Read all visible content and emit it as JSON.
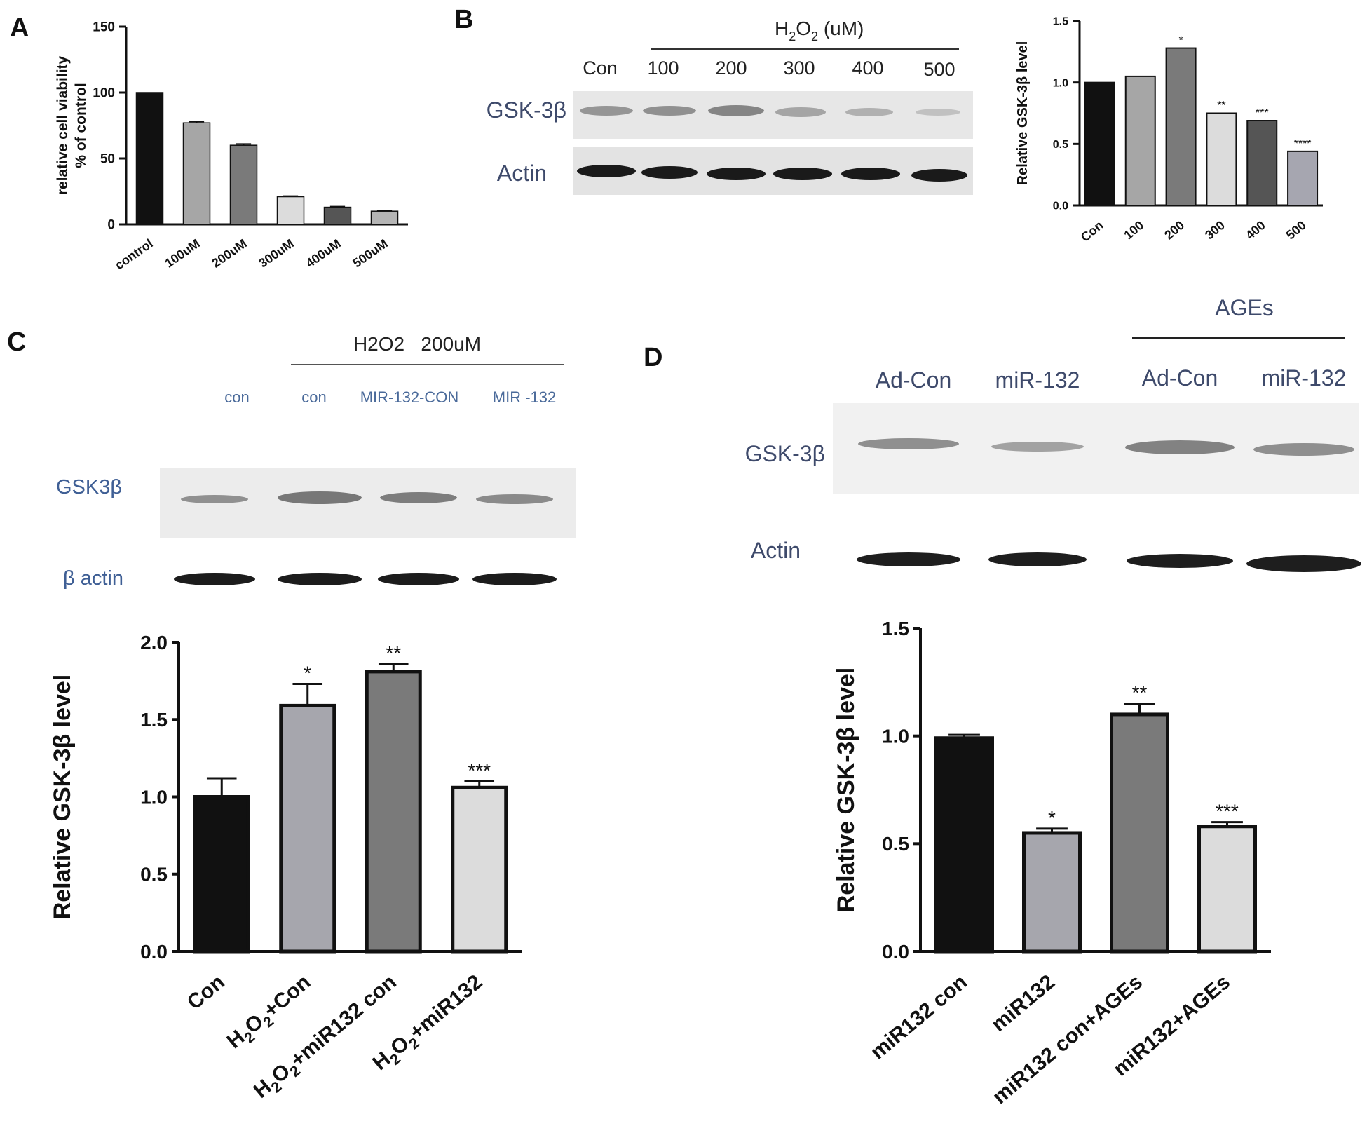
{
  "panels": {
    "A": {
      "letter": "A"
    },
    "B": {
      "letter": "B",
      "blot": {
        "header_prefix": "H",
        "header_sub": "2",
        "header_suffix": "O",
        "header_sub2": "2",
        "header_unit": " (uM)",
        "lanes": [
          "Con",
          "100",
          "200",
          "300",
          "400",
          "500"
        ],
        "rows": [
          "GSK-3β",
          "Actin"
        ]
      }
    },
    "C": {
      "letter": "C",
      "blot": {
        "header": "H2O2   200uM",
        "lanes": [
          "con",
          "con",
          "MIR-132-CON",
          "MIR -132"
        ],
        "rows": [
          "GSK3β",
          "β actin"
        ]
      }
    },
    "D": {
      "letter": "D",
      "blot": {
        "header": "AGEs",
        "lanes": [
          "Ad-Con",
          "miR-132",
          "Ad-Con",
          "miR-132"
        ],
        "rows": [
          "GSK-3β",
          "Actin"
        ]
      }
    }
  },
  "chart_data": [
    {
      "id": "A",
      "type": "bar",
      "categories": [
        "control",
        "100uM",
        "200uM",
        "300uM",
        "400uM",
        "500uM"
      ],
      "values": [
        100,
        77,
        60,
        21,
        13,
        10
      ],
      "errors": [
        0,
        1,
        1,
        0.5,
        0.5,
        0.5
      ],
      "ylabel_line1": "relative cell viability",
      "ylabel_line2": "% of control",
      "ylim": [
        0,
        150
      ],
      "yticks": [
        "0",
        "50",
        "100",
        "150"
      ],
      "colors": [
        "#111111",
        "#a6a6a6",
        "#7a7a7a",
        "#dcdcdc",
        "#555555",
        "#b5b5b5"
      ]
    },
    {
      "id": "B",
      "type": "bar",
      "categories": [
        "Con",
        "100",
        "200",
        "300",
        "400",
        "500"
      ],
      "values": [
        1.0,
        1.05,
        1.28,
        0.75,
        0.69,
        0.44
      ],
      "annotations": [
        "",
        "",
        "*",
        "**",
        "***",
        "****"
      ],
      "ylabel": "Relative GSK-3β level",
      "ylim": [
        0,
        1.5
      ],
      "yticks": [
        "0.0",
        "0.5",
        "1.0",
        "1.5"
      ],
      "colors": [
        "#111111",
        "#a6a6a6",
        "#7a7a7a",
        "#dcdcdc",
        "#555555",
        "#a6a6b0"
      ]
    },
    {
      "id": "C",
      "type": "bar",
      "categories": [
        "Con",
        "H2O2+Con",
        "H2O2+miR132 con",
        "H2O2+miR132"
      ],
      "values": [
        1.0,
        1.59,
        1.81,
        1.06
      ],
      "errors": [
        0.12,
        0.14,
        0.05,
        0.04
      ],
      "annotations": [
        "",
        "*",
        "**",
        "***"
      ],
      "ylabel": "Relative GSK-3β level",
      "ylim": [
        0,
        2.0
      ],
      "yticks": [
        "0.0",
        "0.5",
        "1.0",
        "1.5",
        "2.0"
      ],
      "colors": [
        "#111111",
        "#a6a6ad",
        "#7a7a7a",
        "#dcdcdc"
      ]
    },
    {
      "id": "D",
      "type": "bar",
      "categories": [
        "miR132 con",
        "miR132",
        "miR132 con+AGEs",
        "miR132+AGEs"
      ],
      "values": [
        0.99,
        0.55,
        1.1,
        0.58
      ],
      "errors": [
        0.015,
        0.02,
        0.05,
        0.02
      ],
      "annotations": [
        "",
        "*",
        "**",
        "***"
      ],
      "ylabel": "Relative GSK-3β level",
      "ylim": [
        0,
        1.5
      ],
      "yticks": [
        "0.0",
        "0.5",
        "1.0",
        "1.5"
      ],
      "colors": [
        "#111111",
        "#a6a6ad",
        "#7a7a7a",
        "#dcdcdc"
      ]
    }
  ]
}
